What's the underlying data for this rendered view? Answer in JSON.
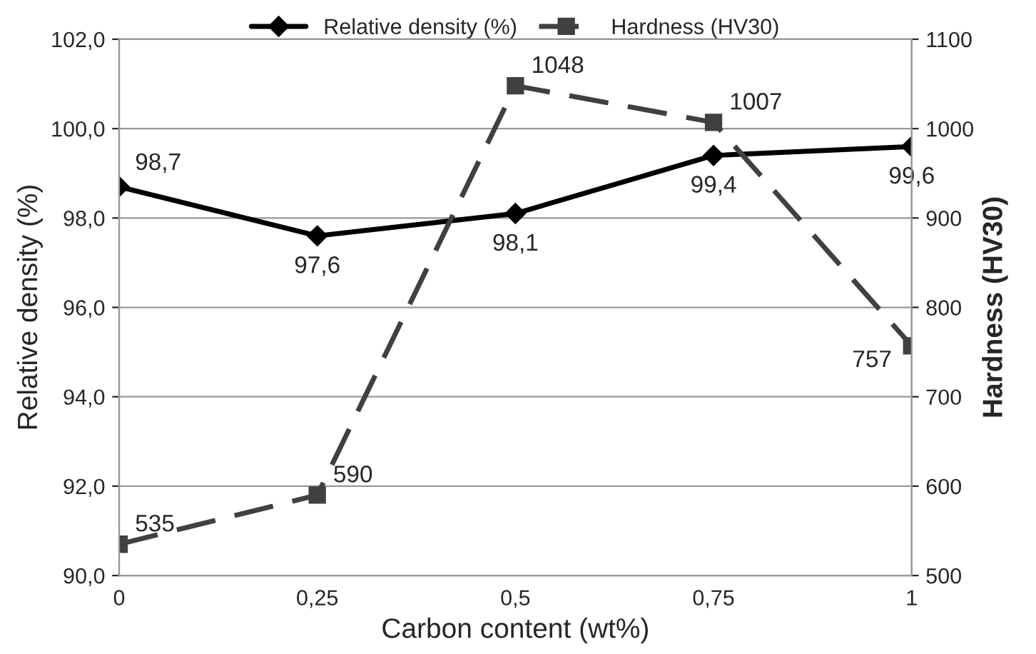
{
  "chart_data": {
    "type": "line",
    "xlabel": "Carbon content (wt%)",
    "ylabel": "Relative density (%)",
    "y2label": "Hardness (HV30)",
    "x": [
      0,
      0.25,
      0.5,
      0.75,
      1
    ],
    "series": [
      {
        "name": "Relative density (%)",
        "color": "#000000",
        "values": [
          98.7,
          97.6,
          98.1,
          99.4,
          99.6
        ],
        "value_labels": [
          "98,7",
          "97,6",
          "98,1",
          "99,4",
          "99,6"
        ],
        "marker": "diamond",
        "line_style": "solid"
      },
      {
        "name": "Hardness (HV30)",
        "color": "#404040",
        "values": [
          535,
          590,
          1048,
          1007,
          757
        ],
        "value_labels": [
          "535",
          "590",
          "1048",
          "1007",
          "757"
        ],
        "marker": "square",
        "line_style": "dashed",
        "axis": "y2"
      }
    ],
    "xlim": [
      0,
      1
    ],
    "xticks": [
      0,
      {
        "value": 0.25,
        "label": "0,25"
      },
      {
        "value": 0.5,
        "label": "0,5"
      },
      {
        "value": 0.75,
        "label": "0,75"
      },
      1
    ],
    "ylim": [
      90,
      102
    ],
    "yticks": [
      {
        "value": 90,
        "label": "90,0"
      },
      {
        "value": 92,
        "label": "92,0"
      },
      {
        "value": 94,
        "label": "94,0"
      },
      {
        "value": 96,
        "label": "96,0"
      },
      {
        "value": 98,
        "label": "98,0"
      },
      {
        "value": 100,
        "label": "100,0"
      },
      {
        "value": 102,
        "label": "102,0"
      }
    ],
    "y2lim": [
      500,
      1100
    ],
    "y2ticks": [
      500,
      600,
      700,
      800,
      900,
      1000,
      1100
    ],
    "grid": "y",
    "legend": "top"
  }
}
